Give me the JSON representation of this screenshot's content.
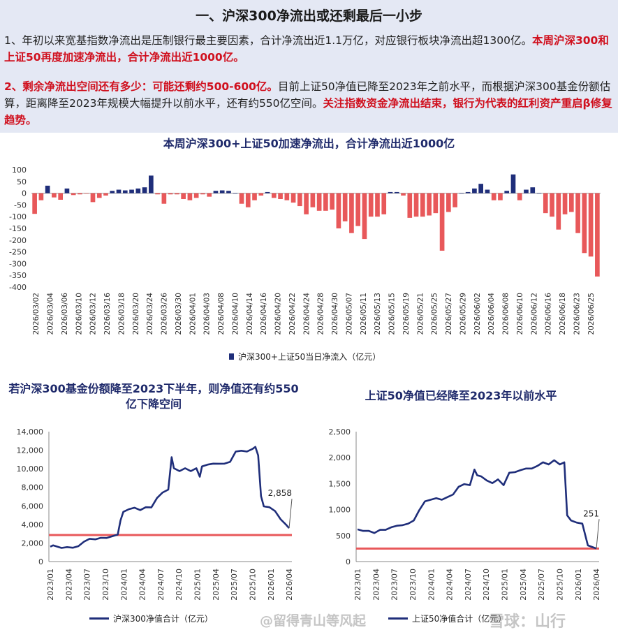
{
  "header": {
    "title": "一、沪深300净流出或还剩最后一小步",
    "p1_normal": "1、年初以来宽基指数净流出是压制银行最主要因素，合计净流出近1.1万亿，对应银行板块净流出超1300亿。",
    "p1_red": "本周沪深300和上证50再度加速净流出，合计净流出近1000亿。",
    "p2_red1": "2、剩余净流出空间还有多少：可能还剩约500-600亿。",
    "p2_normal": "目前上证50净值已降至2023年之前水平，而根据沪深300基金份额估算，距离降至2023年规模大幅提升以前水平，还有约550亿空间。",
    "p2_red2": "关注指数资金净流出结束，银行为代表的红利资产重启β修复趋势。"
  },
  "colors": {
    "positive": "#1f2e7a",
    "negative": "#e8585a",
    "line": "#1f2e7a",
    "reference": "#e8585a"
  },
  "watermarks": {
    "left": "@留得青山等风起",
    "right": "雪球：山行"
  },
  "chart_data": [
    {
      "type": "bar",
      "title": "本周沪深300+上证50加速净流出，合计净流出近1000亿",
      "legend": "沪深300+上证50当日净流入（亿元）",
      "ylim": [
        -400,
        100
      ],
      "yticks": [
        100,
        50,
        0,
        -50,
        -100,
        -150,
        -200,
        -250,
        -300,
        -350,
        -400
      ],
      "xticklabels": [
        "2026/03/02",
        "2026/03/04",
        "2026/03/06",
        "2026/03/10",
        "2026/03/12",
        "2026/03/16",
        "2026/03/18",
        "2026/03/20",
        "2026/03/24",
        "2026/03/26",
        "2026/03/30",
        "2026/04/01",
        "2026/04/03",
        "2026/04/08",
        "2026/04/10",
        "2026/04/14",
        "2026/04/16",
        "2026/04/20",
        "2026/04/22",
        "2026/04/24",
        "2026/04/28",
        "2026/04/30",
        "2026/05/07",
        "2026/05/11",
        "2026/05/13",
        "2026/05/15",
        "2026/05/19",
        "2026/05/21",
        "2026/05/25",
        "2026/05/27",
        "2026/05/29",
        "2026/06/02",
        "2026/06/04",
        "2026/06/08",
        "2026/06/10",
        "2026/06/12",
        "2026/06/16",
        "2026/06/18",
        "2026/06/23",
        "2026/06/25"
      ],
      "values": [
        -88,
        -30,
        32,
        -18,
        -28,
        20,
        -8,
        -5,
        -2,
        -38,
        -20,
        -10,
        10,
        15,
        12,
        15,
        20,
        25,
        75,
        -5,
        -45,
        -5,
        -5,
        -25,
        -30,
        -20,
        -5,
        -15,
        10,
        12,
        10,
        0,
        -45,
        -60,
        -30,
        -10,
        5,
        -20,
        -25,
        -30,
        -40,
        -55,
        -90,
        -60,
        -75,
        -75,
        -70,
        -150,
        -120,
        -170,
        -140,
        -195,
        -100,
        -100,
        -90,
        5,
        5,
        -10,
        -105,
        -100,
        -100,
        -95,
        -85,
        -245,
        -80,
        -60,
        0,
        5,
        20,
        40,
        15,
        -30,
        -30,
        10,
        80,
        -30,
        15,
        25,
        0,
        -85,
        -100,
        -155,
        -90,
        -80,
        -170,
        -255,
        -270,
        -355
      ]
    },
    {
      "type": "line",
      "title": "若沪深300基金份额降至2023下半年，则净值还有约550亿下降空间",
      "legend": "沪深300净值合计（亿元）",
      "ylim": [
        0,
        14000
      ],
      "yticks": [
        0,
        2000,
        4000,
        6000,
        8000,
        10000,
        12000,
        14000
      ],
      "xticklabels": [
        "2023/01",
        "2023/04",
        "2023/07",
        "2023/10",
        "2024/01",
        "2024/04",
        "2024/07",
        "2024/10",
        "2025/01",
        "2025/04",
        "2025/07",
        "2025/10",
        "2026/01",
        "2026/04"
      ],
      "reference_value": 2858,
      "reference_label": "2,858",
      "points": [
        [
          0,
          1600
        ],
        [
          0.5,
          1800
        ],
        [
          1,
          1600
        ],
        [
          2,
          1520
        ],
        [
          3,
          1500
        ],
        [
          4,
          1550
        ],
        [
          5,
          1600
        ],
        [
          6,
          2200
        ],
        [
          7,
          2400
        ],
        [
          8,
          2450
        ],
        [
          9,
          2500
        ],
        [
          10,
          2600
        ],
        [
          12,
          2850
        ],
        [
          12.5,
          4500
        ],
        [
          13,
          5300
        ],
        [
          14,
          5700
        ],
        [
          15,
          5750
        ],
        [
          16,
          5600
        ],
        [
          17,
          5800
        ],
        [
          18,
          5900
        ],
        [
          19,
          6800
        ],
        [
          20,
          7500
        ],
        [
          21,
          7700
        ],
        [
          21.6,
          11300
        ],
        [
          22,
          10000
        ],
        [
          23,
          9800
        ],
        [
          24,
          10000
        ],
        [
          25,
          9800
        ],
        [
          26,
          10000
        ],
        [
          26.6,
          9200
        ],
        [
          27,
          10200
        ],
        [
          28,
          10500
        ],
        [
          29,
          10500
        ],
        [
          30,
          10600
        ],
        [
          31,
          10500
        ],
        [
          32,
          10800
        ],
        [
          33,
          11800
        ],
        [
          34,
          12000
        ],
        [
          35,
          11800
        ],
        [
          36,
          12200
        ],
        [
          36.5,
          12300
        ],
        [
          37,
          11500
        ],
        [
          37.5,
          7000
        ],
        [
          38,
          6000
        ],
        [
          39,
          5800
        ],
        [
          40,
          5500
        ],
        [
          41,
          4500
        ],
        [
          42,
          4000
        ],
        [
          42.5,
          3600
        ]
      ]
    },
    {
      "type": "line",
      "title": "上证50净值已经降至2023年以前水平",
      "legend": "上证50净值合计（亿元）",
      "ylim": [
        0,
        2500
      ],
      "yticks": [
        0,
        500,
        1000,
        1500,
        2000,
        2500
      ],
      "xticklabels": [
        "2023/01",
        "2023/04",
        "2023/07",
        "2023/10",
        "2024/01",
        "2024/04",
        "2024/07",
        "2024/10",
        "2025/01",
        "2025/04",
        "2025/07",
        "2025/10",
        "2026/01",
        "2026/04"
      ],
      "reference_value": 251,
      "reference_label": "251",
      "points": [
        [
          0,
          620
        ],
        [
          1,
          600
        ],
        [
          2,
          580
        ],
        [
          3,
          560
        ],
        [
          4,
          600
        ],
        [
          5,
          620
        ],
        [
          6,
          650
        ],
        [
          7,
          700
        ],
        [
          8,
          690
        ],
        [
          9,
          740
        ],
        [
          10,
          780
        ],
        [
          11,
          1000
        ],
        [
          12,
          1150
        ],
        [
          13,
          1200
        ],
        [
          14,
          1210
        ],
        [
          15,
          1200
        ],
        [
          16,
          1230
        ],
        [
          17,
          1300
        ],
        [
          18,
          1430
        ],
        [
          19,
          1500
        ],
        [
          20,
          1460
        ],
        [
          20.8,
          1780
        ],
        [
          21.3,
          1650
        ],
        [
          22,
          1650
        ],
        [
          23,
          1550
        ],
        [
          24,
          1520
        ],
        [
          25,
          1570
        ],
        [
          26,
          1480
        ],
        [
          27,
          1700
        ],
        [
          28,
          1730
        ],
        [
          29,
          1750
        ],
        [
          30,
          1800
        ],
        [
          31,
          1780
        ],
        [
          32,
          1850
        ],
        [
          33,
          1900
        ],
        [
          34,
          1880
        ],
        [
          35,
          1940
        ],
        [
          36,
          1880
        ],
        [
          36.8,
          1900
        ],
        [
          37.3,
          900
        ],
        [
          38,
          780
        ],
        [
          39,
          760
        ],
        [
          40,
          720
        ],
        [
          41,
          320
        ],
        [
          42,
          260
        ],
        [
          42.5,
          251
        ]
      ]
    }
  ]
}
